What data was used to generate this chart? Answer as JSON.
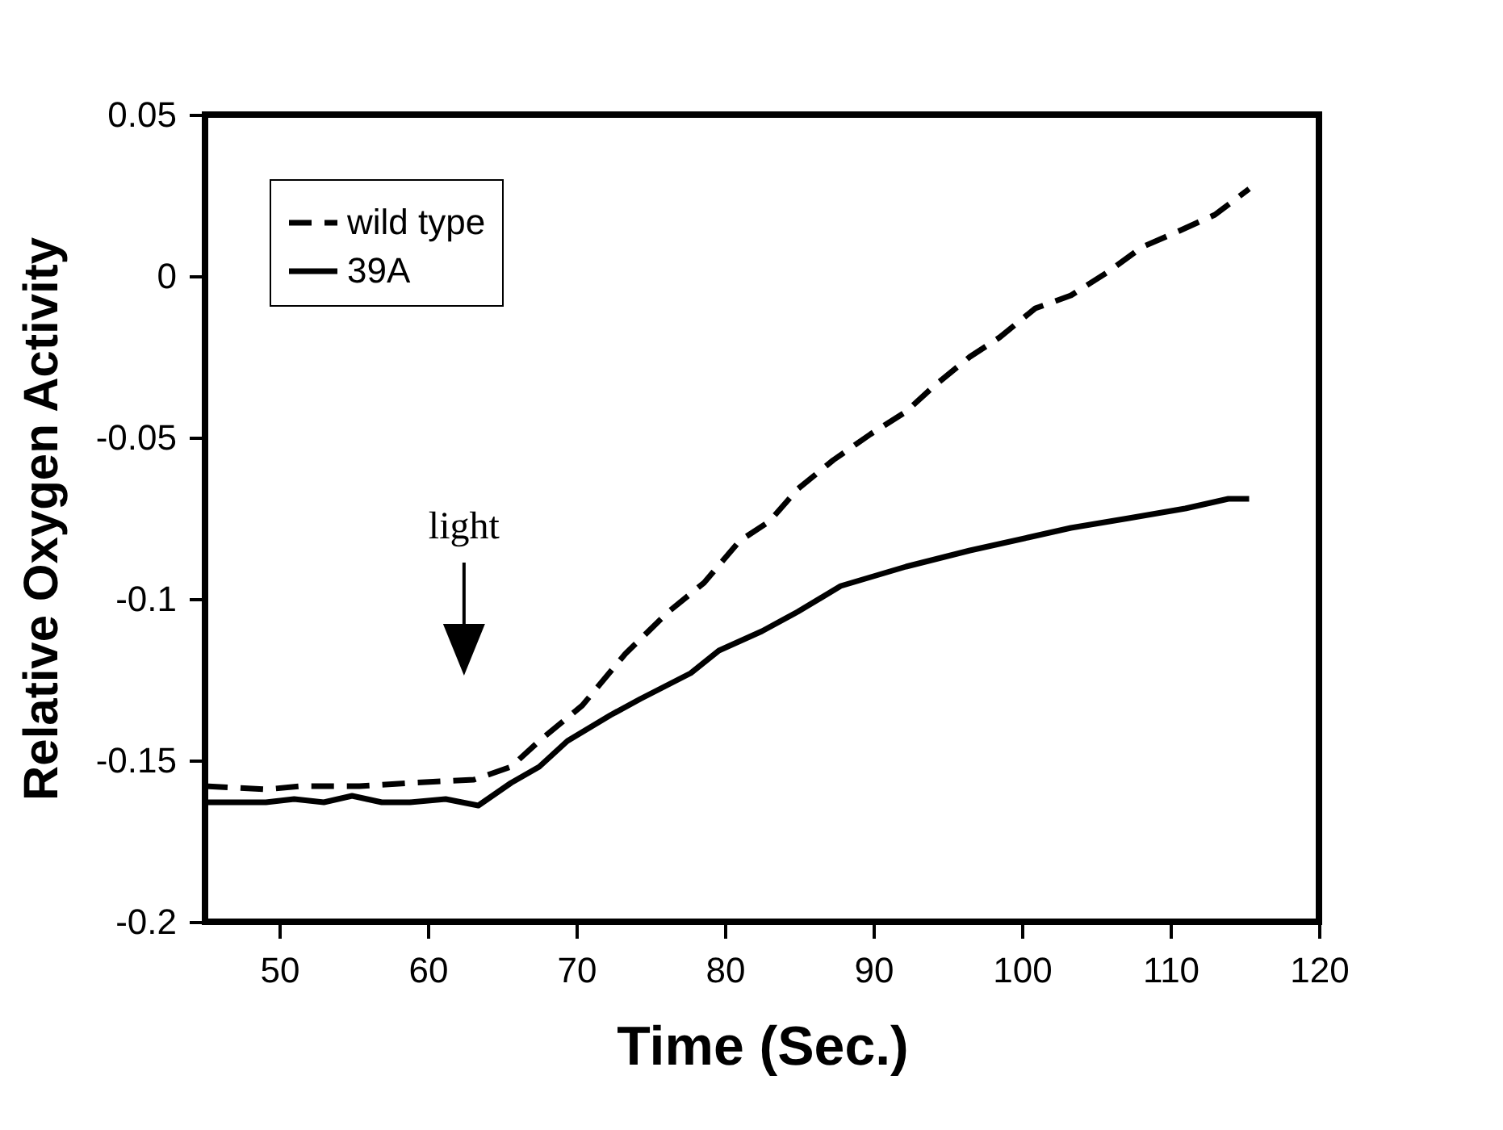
{
  "chart_data": {
    "type": "line",
    "xlabel": "Time (Sec.)",
    "ylabel": "Relative Oxygen Activity",
    "xlim": [
      45,
      120
    ],
    "xticks": [
      50,
      60,
      70,
      80,
      90,
      100,
      110,
      120
    ],
    "ylim": [
      -0.2,
      0.05
    ],
    "yticks": [
      -0.2,
      -0.15,
      -0.1,
      -0.05,
      0,
      0.05
    ],
    "legend": "top left",
    "grid": false,
    "marker": "none",
    "annotations": [
      "light"
    ],
    "series": [
      {
        "name": "wild type",
        "color": "#000000",
        "line_style": "dashed",
        "x": [
          45,
          49.1,
          51.5,
          55.4,
          58.8,
          63.1,
          65.6,
          67.5,
          70.4,
          73.3,
          76.2,
          78.6,
          81.0,
          83.0,
          84.9,
          87.3,
          89.8,
          92.2,
          94.1,
          96.5,
          98.5,
          100.9,
          103.3,
          105.7,
          108.1,
          110.6,
          113.0,
          115.3
        ],
        "values": [
          -0.158,
          -0.159,
          -0.158,
          -0.158,
          -0.157,
          -0.156,
          -0.152,
          -0.144,
          -0.133,
          -0.117,
          -0.104,
          -0.095,
          -0.082,
          -0.076,
          -0.066,
          -0.057,
          -0.049,
          -0.042,
          -0.034,
          -0.025,
          -0.019,
          -0.01,
          -0.006,
          0.001,
          0.009,
          0.014,
          0.019,
          0.027
        ]
      },
      {
        "name": "39A",
        "color": "#000000",
        "line_style": "solid",
        "x": [
          45,
          49.1,
          51.0,
          53.0,
          54.9,
          56.9,
          58.8,
          61.2,
          63.4,
          65.6,
          67.5,
          69.4,
          72.3,
          74.3,
          77.7,
          79.6,
          82.5,
          84.9,
          87.8,
          92.2,
          96.5,
          100.4,
          103.3,
          107.2,
          111.0,
          113.9,
          115.3
        ],
        "values": [
          -0.163,
          -0.163,
          -0.162,
          -0.163,
          -0.161,
          -0.163,
          -0.163,
          -0.162,
          -0.164,
          -0.157,
          -0.152,
          -0.144,
          -0.136,
          -0.131,
          -0.123,
          -0.116,
          -0.11,
          -0.104,
          -0.096,
          -0.09,
          -0.085,
          -0.081,
          -0.078,
          -0.075,
          -0.072,
          -0.069,
          -0.069
        ]
      }
    ]
  }
}
